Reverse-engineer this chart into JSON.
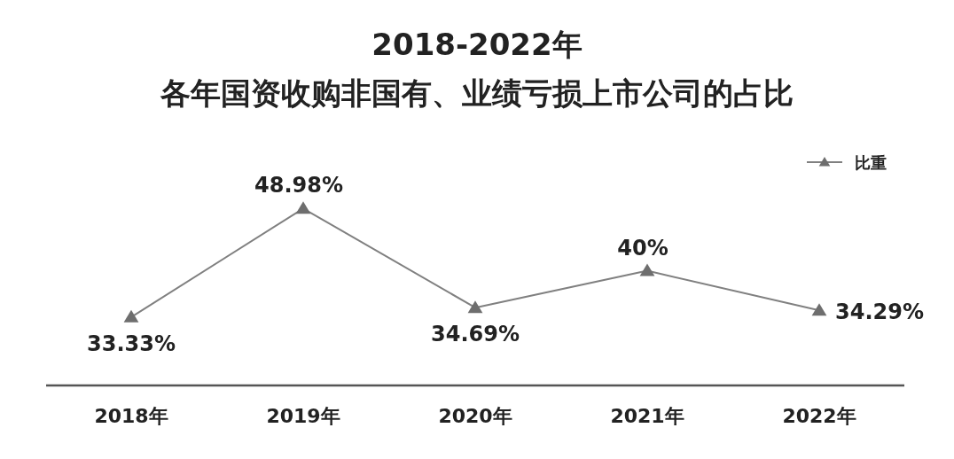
{
  "chart_data": {
    "type": "line",
    "title": "2018-2022年",
    "subtitle": "各年国资收购非国有、业绩亏损上市公司的占比",
    "categories": [
      "2018年",
      "2019年",
      "2020年",
      "2021年",
      "2022年"
    ],
    "series": [
      {
        "name": "比重",
        "color": "#808080",
        "values": [
          33.33,
          48.98,
          34.69,
          40,
          34.29
        ],
        "value_labels": [
          "33.33%",
          "48.98%",
          "34.69%",
          "40%",
          "34.29%"
        ]
      }
    ],
    "tick_labels": "x",
    "marker": "triangle",
    "legend": "top right"
  }
}
